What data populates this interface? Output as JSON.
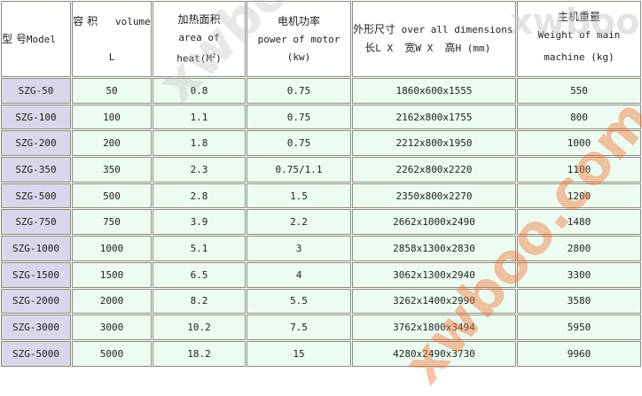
{
  "watermark": "xwboo.com",
  "headers": {
    "model": {
      "zh": "型 号",
      "en": "Model"
    },
    "volume": {
      "zh": "容 积",
      "en": "volume",
      "unit": "L"
    },
    "heat": {
      "zh": "加热面积",
      "en": "area of heat(M",
      "sup": "2",
      "close": ")"
    },
    "power": {
      "zh": "电机功率",
      "en": "power of motor (kw)"
    },
    "dims": {
      "zh": "外形尺寸",
      "en": "over all dimensions",
      "line2_l": "长",
      "l": "L  X",
      "line2_w": "宽",
      "w": "W  X",
      "line2_h": "高",
      "h": "H  (mm)"
    },
    "weight": {
      "zh": "主机重量",
      "en1": "Weight of main",
      "en2": "machine  (kg)"
    }
  },
  "rows": [
    {
      "model": "SZG-50",
      "volume": "50",
      "heat": "0.8",
      "power": "0.75",
      "dims": "1860x600x1555",
      "weight": "550"
    },
    {
      "model": "SZG-100",
      "volume": "100",
      "heat": "1.1",
      "power": "0.75",
      "dims": "2162x800x1755",
      "weight": "800"
    },
    {
      "model": "SZG-200",
      "volume": "200",
      "heat": "1.8",
      "power": "0.75",
      "dims": "2212x800x1950",
      "weight": "1000"
    },
    {
      "model": "SZG-350",
      "volume": "350",
      "heat": "2.3",
      "power": "0.75/1.1",
      "dims": "2262x800x2220",
      "weight": "1100"
    },
    {
      "model": "SZG-500",
      "volume": "500",
      "heat": "2.8",
      "power": "1.5",
      "dims": "2350x800x2270",
      "weight": "1200"
    },
    {
      "model": "SZG-750",
      "volume": "750",
      "heat": "3.9",
      "power": "2.2",
      "dims": "2662x1000x2490",
      "weight": "1480"
    },
    {
      "model": "SZG-1000",
      "volume": "1000",
      "heat": "5.1",
      "power": "3",
      "dims": "2858x1300x2830",
      "weight": "2800"
    },
    {
      "model": "SZG-1500",
      "volume": "1500",
      "heat": "6.5",
      "power": "4",
      "dims": "3062x1300x2940",
      "weight": "3300"
    },
    {
      "model": "SZG-2000",
      "volume": "2000",
      "heat": "8.2",
      "power": "5.5",
      "dims": "3262x1400x2990",
      "weight": "3580"
    },
    {
      "model": "SZG-3000",
      "volume": "3000",
      "heat": "10.2",
      "power": "7.5",
      "dims": "3762x1800x3494",
      "weight": "5950"
    },
    {
      "model": "SZG-5000",
      "volume": "5000",
      "heat": "18.2",
      "power": "15",
      "dims": "4280x2490x3730",
      "weight": "9960"
    }
  ]
}
